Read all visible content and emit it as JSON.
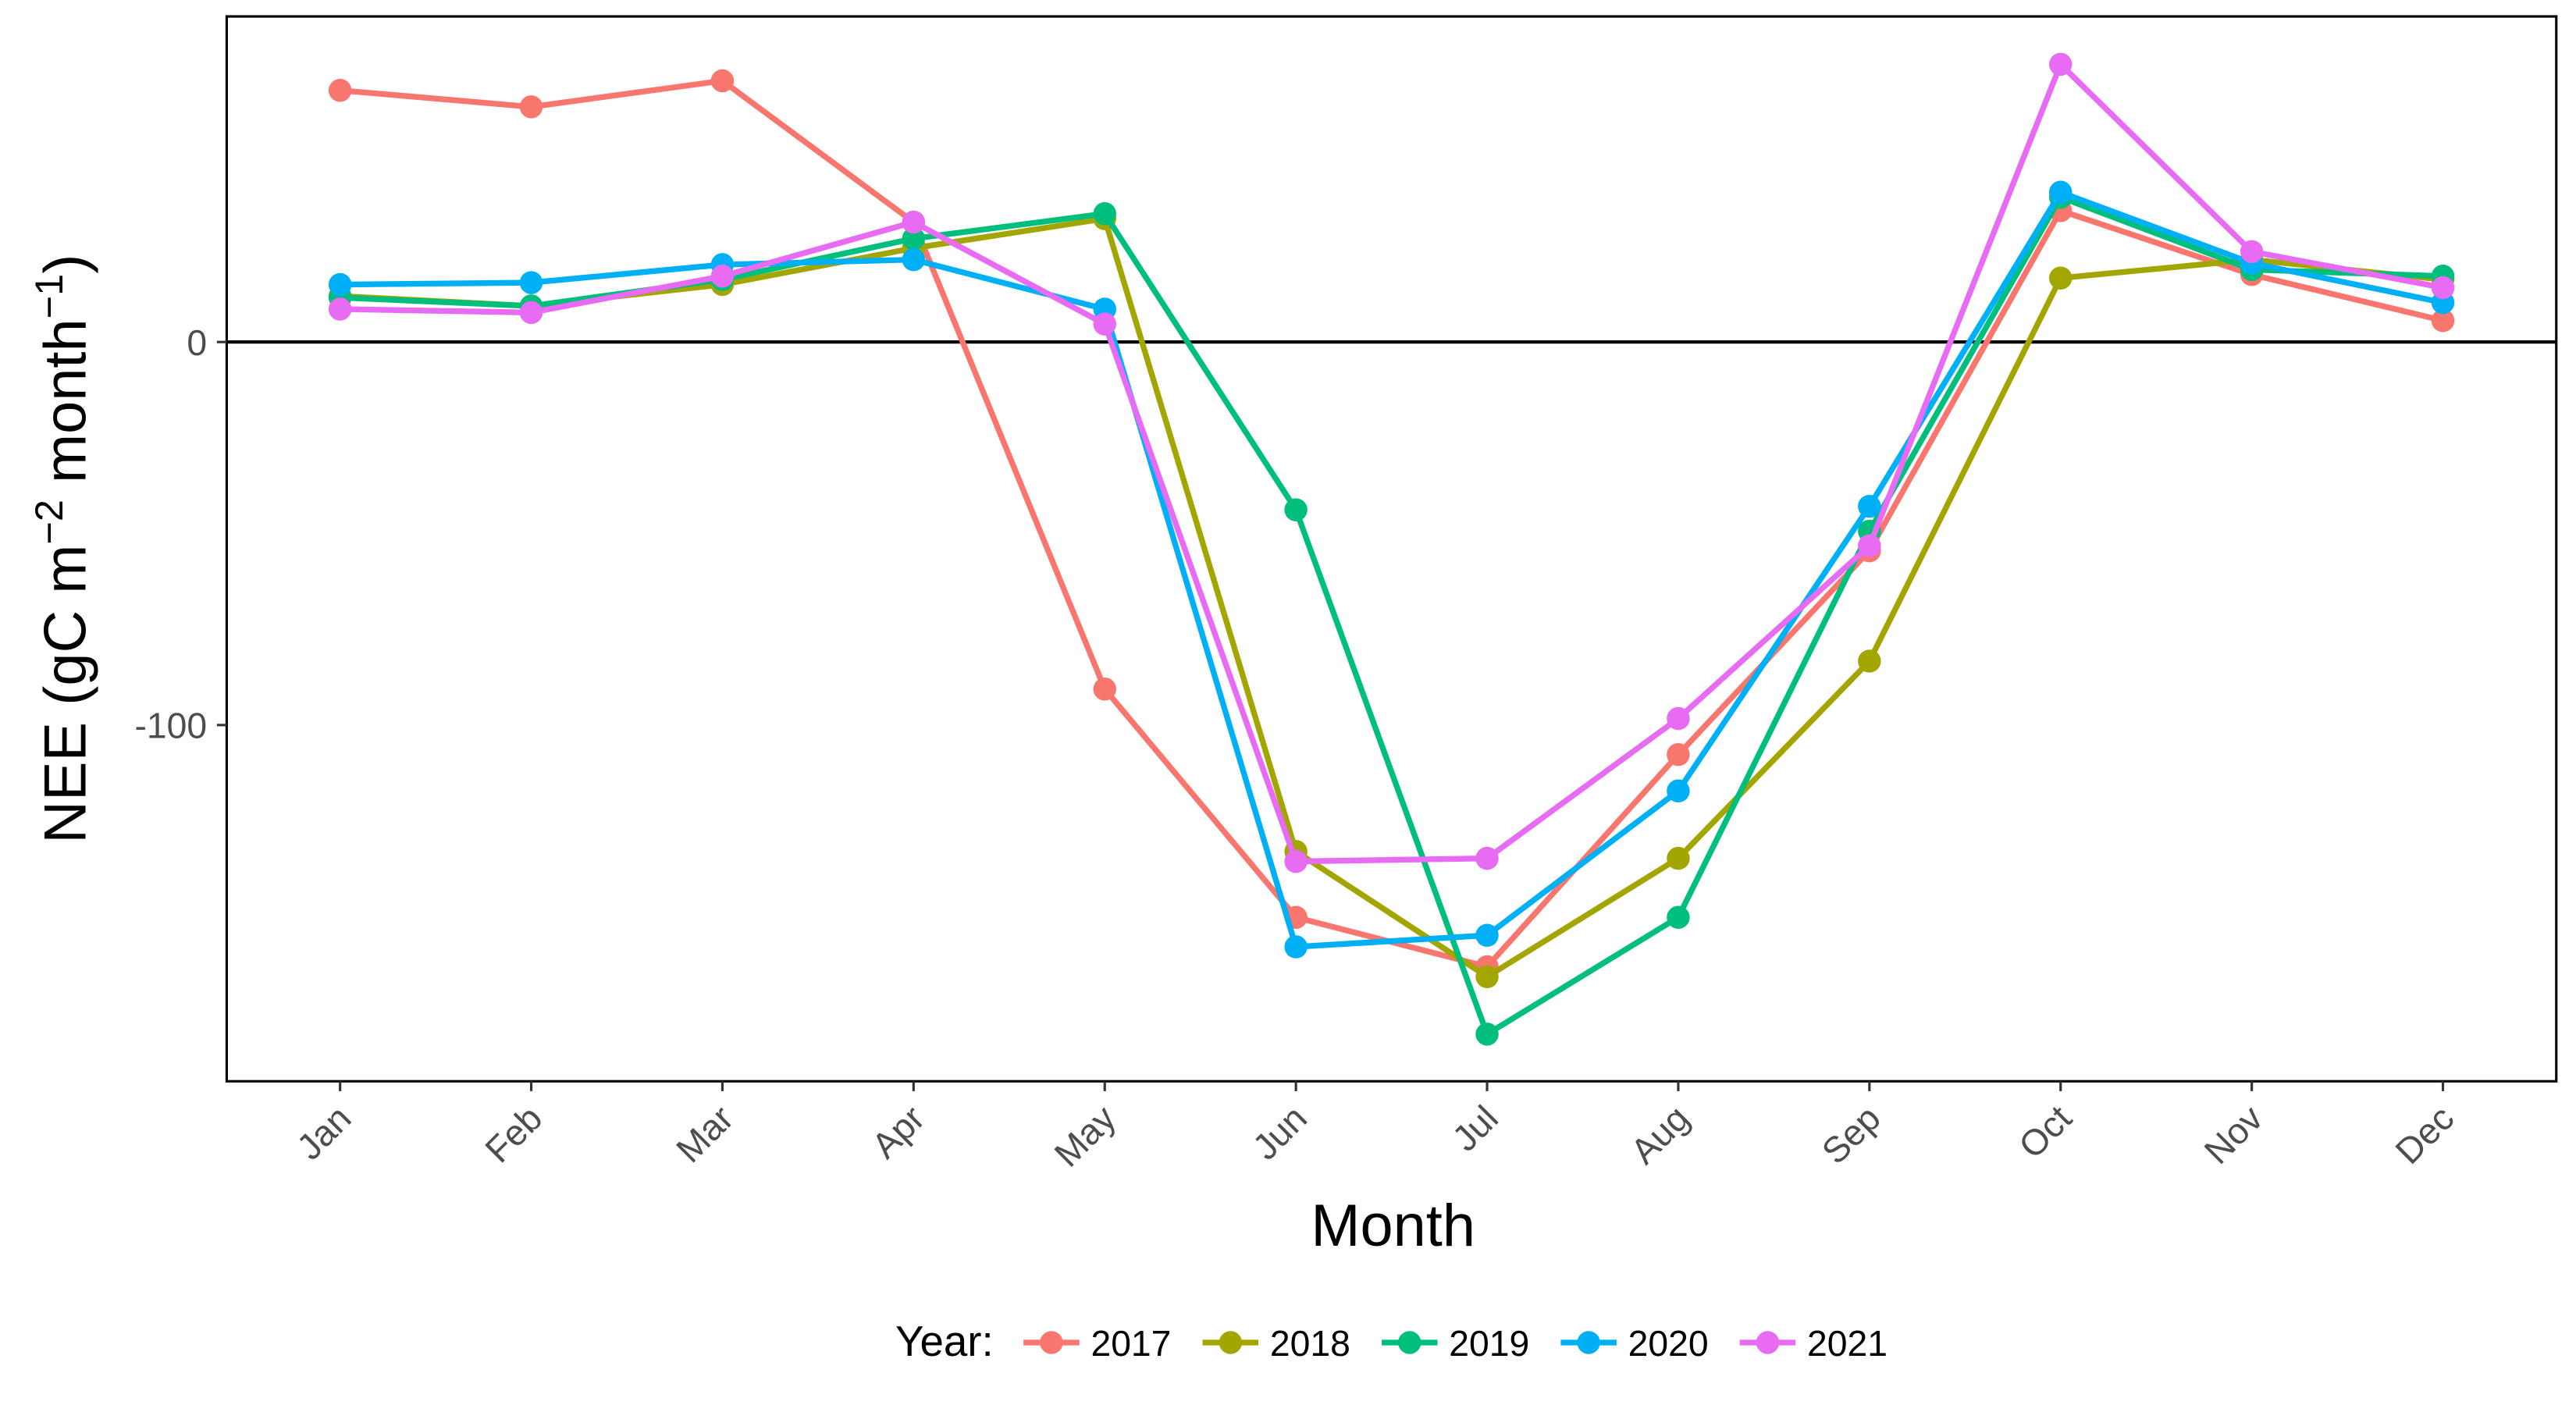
{
  "chart_data": {
    "type": "line",
    "xlabel": "Month",
    "ylabel": [
      "NEE (gC m",
      "−2",
      " month",
      "−1",
      ")"
    ],
    "categories": [
      "Jan",
      "Feb",
      "Mar",
      "Apr",
      "May",
      "Jun",
      "Jul",
      "Aug",
      "Sep",
      "Oct",
      "Nov",
      "Dec"
    ],
    "ylim": [
      -193,
      85
    ],
    "yticks": [
      0,
      -100
    ],
    "hline": 0,
    "legend_title": "Year:",
    "legend_position": "bottom",
    "series": [
      {
        "name": "2017",
        "color": "#F8766D",
        "values": [
          65.7,
          61.4,
          68.2,
          31.3,
          -90.6,
          -150.2,
          -163.1,
          -107.7,
          -54.5,
          34.3,
          17.6,
          5.6
        ]
      },
      {
        "name": "2018",
        "color": "#A3A500",
        "values": [
          12.0,
          9.4,
          15.0,
          24.5,
          32.2,
          -133.0,
          -165.7,
          -134.8,
          -83.3,
          16.7,
          21.5,
          16.3
        ]
      },
      {
        "name": "2019",
        "color": "#00BF7D",
        "values": [
          11.6,
          9.4,
          16.3,
          27.0,
          33.5,
          -43.8,
          -180.7,
          -150.2,
          -49.4,
          37.8,
          18.9,
          17.2
        ]
      },
      {
        "name": "2020",
        "color": "#00B0F6",
        "values": [
          15.0,
          15.5,
          20.2,
          21.5,
          8.6,
          -157.9,
          -154.9,
          -117.2,
          -42.9,
          39.1,
          20.6,
          10.3
        ]
      },
      {
        "name": "2021",
        "color": "#E76BF3",
        "values": [
          8.6,
          7.7,
          17.2,
          31.3,
          4.7,
          -135.6,
          -134.8,
          -98.3,
          -53.2,
          72.5,
          23.6,
          14.2
        ]
      }
    ]
  }
}
